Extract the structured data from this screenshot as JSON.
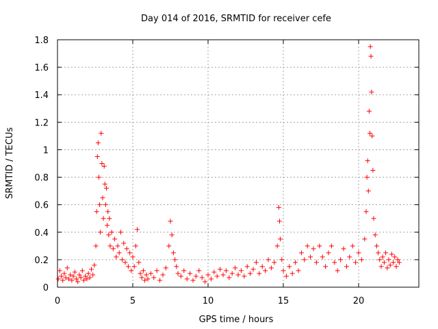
{
  "chart_data": {
    "type": "scatter",
    "title": "Day 014 of 2016, SRMTID for receiver cefe",
    "xlabel": "GPS time / hours",
    "ylabel": "SRMTID / TECUs",
    "xlim": [
      0,
      24
    ],
    "ylim": [
      0,
      1.8
    ],
    "xticks": [
      0,
      5,
      10,
      15,
      20
    ],
    "xtick_labels": [
      "0",
      "5",
      "10",
      "15",
      "20"
    ],
    "yticks": [
      0,
      0.2,
      0.4,
      0.6,
      0.8,
      1.0,
      1.2,
      1.4,
      1.6,
      1.8
    ],
    "ytick_labels": [
      "0",
      "0.2",
      "0.4",
      "0.6",
      "0.8",
      "1",
      "1.2",
      "1.4",
      "1.6",
      "1.8"
    ],
    "grid": true,
    "marker": "+",
    "color": "#ff0000",
    "series": [
      {
        "name": "SRMTID",
        "points": [
          [
            0.05,
            0.06
          ],
          [
            0.15,
            0.12
          ],
          [
            0.25,
            0.08
          ],
          [
            0.35,
            0.05
          ],
          [
            0.45,
            0.1
          ],
          [
            0.55,
            0.07
          ],
          [
            0.65,
            0.14
          ],
          [
            0.75,
            0.06
          ],
          [
            0.85,
            0.09
          ],
          [
            0.95,
            0.05
          ],
          [
            1.05,
            0.08
          ],
          [
            1.15,
            0.11
          ],
          [
            1.25,
            0.06
          ],
          [
            1.35,
            0.04
          ],
          [
            1.45,
            0.09
          ],
          [
            1.55,
            0.07
          ],
          [
            1.65,
            0.12
          ],
          [
            1.75,
            0.05
          ],
          [
            1.85,
            0.08
          ],
          [
            1.95,
            0.06
          ],
          [
            2.05,
            0.1
          ],
          [
            2.15,
            0.07
          ],
          [
            2.25,
            0.13
          ],
          [
            2.35,
            0.09
          ],
          [
            2.45,
            0.16
          ],
          [
            2.55,
            0.3
          ],
          [
            2.6,
            0.55
          ],
          [
            2.65,
            0.95
          ],
          [
            2.7,
            1.05
          ],
          [
            2.75,
            0.8
          ],
          [
            2.8,
            0.6
          ],
          [
            2.85,
            0.4
          ],
          [
            2.9,
            1.12
          ],
          [
            2.95,
            0.9
          ],
          [
            3.0,
            0.65
          ],
          [
            3.05,
            0.5
          ],
          [
            3.1,
            0.88
          ],
          [
            3.15,
            0.75
          ],
          [
            3.2,
            0.6
          ],
          [
            3.25,
            0.72
          ],
          [
            3.3,
            0.45
          ],
          [
            3.35,
            0.55
          ],
          [
            3.4,
            0.38
          ],
          [
            3.45,
            0.5
          ],
          [
            3.5,
            0.3
          ],
          [
            3.6,
            0.4
          ],
          [
            3.7,
            0.28
          ],
          [
            3.8,
            0.35
          ],
          [
            3.9,
            0.22
          ],
          [
            4.0,
            0.3
          ],
          [
            4.1,
            0.25
          ],
          [
            4.2,
            0.4
          ],
          [
            4.3,
            0.2
          ],
          [
            4.4,
            0.32
          ],
          [
            4.5,
            0.18
          ],
          [
            4.6,
            0.28
          ],
          [
            4.7,
            0.15
          ],
          [
            4.8,
            0.25
          ],
          [
            4.9,
            0.12
          ],
          [
            5.0,
            0.22
          ],
          [
            5.1,
            0.15
          ],
          [
            5.2,
            0.3
          ],
          [
            5.3,
            0.42
          ],
          [
            5.4,
            0.18
          ],
          [
            5.5,
            0.1
          ],
          [
            5.6,
            0.07
          ],
          [
            5.7,
            0.12
          ],
          [
            5.8,
            0.05
          ],
          [
            5.9,
            0.09
          ],
          [
            6.0,
            0.06
          ],
          [
            6.2,
            0.1
          ],
          [
            6.4,
            0.07
          ],
          [
            6.6,
            0.12
          ],
          [
            6.8,
            0.05
          ],
          [
            7.0,
            0.09
          ],
          [
            7.2,
            0.14
          ],
          [
            7.4,
            0.3
          ],
          [
            7.5,
            0.48
          ],
          [
            7.6,
            0.38
          ],
          [
            7.7,
            0.25
          ],
          [
            7.8,
            0.2
          ],
          [
            7.9,
            0.15
          ],
          [
            8.0,
            0.1
          ],
          [
            8.2,
            0.08
          ],
          [
            8.4,
            0.12
          ],
          [
            8.6,
            0.06
          ],
          [
            8.8,
            0.1
          ],
          [
            9.0,
            0.05
          ],
          [
            9.2,
            0.08
          ],
          [
            9.4,
            0.12
          ],
          [
            9.6,
            0.07
          ],
          [
            9.8,
            0.04
          ],
          [
            10.0,
            0.09
          ],
          [
            10.2,
            0.06
          ],
          [
            10.4,
            0.11
          ],
          [
            10.6,
            0.08
          ],
          [
            10.8,
            0.13
          ],
          [
            11.0,
            0.09
          ],
          [
            11.2,
            0.12
          ],
          [
            11.4,
            0.07
          ],
          [
            11.6,
            0.1
          ],
          [
            11.8,
            0.14
          ],
          [
            12.0,
            0.09
          ],
          [
            12.2,
            0.12
          ],
          [
            12.4,
            0.08
          ],
          [
            12.6,
            0.15
          ],
          [
            12.8,
            0.1
          ],
          [
            13.0,
            0.13
          ],
          [
            13.2,
            0.18
          ],
          [
            13.4,
            0.1
          ],
          [
            13.6,
            0.15
          ],
          [
            13.8,
            0.12
          ],
          [
            14.0,
            0.2
          ],
          [
            14.2,
            0.14
          ],
          [
            14.4,
            0.18
          ],
          [
            14.6,
            0.3
          ],
          [
            14.7,
            0.58
          ],
          [
            14.75,
            0.48
          ],
          [
            14.8,
            0.35
          ],
          [
            14.9,
            0.2
          ],
          [
            15.0,
            0.12
          ],
          [
            15.2,
            0.08
          ],
          [
            15.4,
            0.15
          ],
          [
            15.6,
            0.1
          ],
          [
            15.8,
            0.18
          ],
          [
            16.0,
            0.12
          ],
          [
            16.2,
            0.25
          ],
          [
            16.4,
            0.2
          ],
          [
            16.6,
            0.3
          ],
          [
            16.8,
            0.22
          ],
          [
            17.0,
            0.28
          ],
          [
            17.2,
            0.18
          ],
          [
            17.4,
            0.3
          ],
          [
            17.6,
            0.22
          ],
          [
            17.8,
            0.15
          ],
          [
            18.0,
            0.25
          ],
          [
            18.2,
            0.3
          ],
          [
            18.4,
            0.18
          ],
          [
            18.6,
            0.12
          ],
          [
            18.8,
            0.2
          ],
          [
            19.0,
            0.28
          ],
          [
            19.2,
            0.15
          ],
          [
            19.4,
            0.22
          ],
          [
            19.6,
            0.3
          ],
          [
            19.8,
            0.18
          ],
          [
            20.0,
            0.25
          ],
          [
            20.2,
            0.2
          ],
          [
            20.4,
            0.35
          ],
          [
            20.5,
            0.55
          ],
          [
            20.55,
            0.8
          ],
          [
            20.6,
            0.92
          ],
          [
            20.65,
            0.7
          ],
          [
            20.7,
            1.28
          ],
          [
            20.75,
            1.12
          ],
          [
            20.78,
            1.75
          ],
          [
            20.82,
            1.68
          ],
          [
            20.86,
            1.42
          ],
          [
            20.9,
            1.1
          ],
          [
            20.95,
            0.85
          ],
          [
            21.0,
            0.5
          ],
          [
            21.1,
            0.38
          ],
          [
            21.2,
            0.3
          ],
          [
            21.3,
            0.25
          ],
          [
            21.4,
            0.2
          ],
          [
            21.5,
            0.15
          ],
          [
            21.6,
            0.22
          ],
          [
            21.7,
            0.18
          ],
          [
            21.8,
            0.25
          ],
          [
            21.9,
            0.14
          ],
          [
            22.0,
            0.2
          ],
          [
            22.1,
            0.16
          ],
          [
            22.2,
            0.24
          ],
          [
            22.3,
            0.18
          ],
          [
            22.4,
            0.22
          ],
          [
            22.5,
            0.15
          ],
          [
            22.6,
            0.2
          ],
          [
            22.7,
            0.18
          ]
        ]
      }
    ]
  }
}
